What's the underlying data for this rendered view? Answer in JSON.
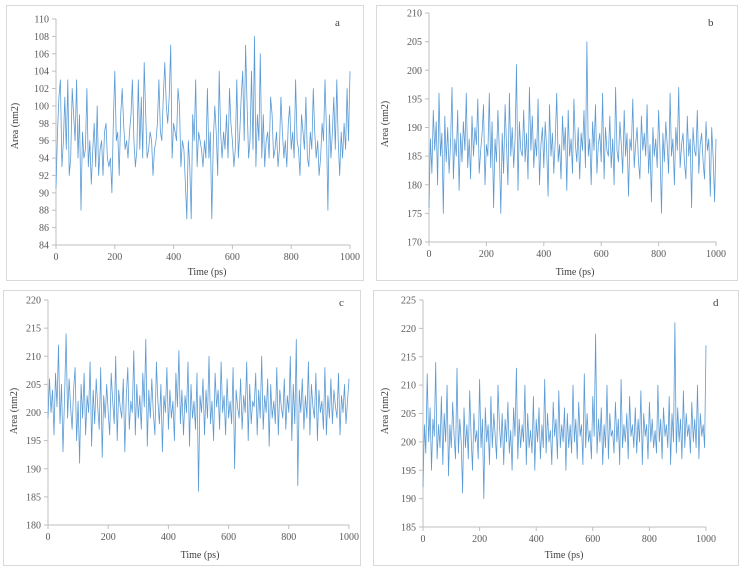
{
  "page": {
    "colors": {
      "line": "#5b9bd5",
      "axis": "#bfbfbf",
      "border": "#d9d9d9",
      "text": "#595959"
    }
  },
  "chart_data": [
    {
      "type": "line",
      "panel": "a",
      "xlabel": "Time (ps)",
      "ylabel": "Area (nm2)",
      "xlim": [
        0,
        1000
      ],
      "ylim": [
        84,
        110
      ],
      "x_ticks": [
        0,
        200,
        400,
        600,
        800,
        1000
      ],
      "y_ticks": [
        84,
        86,
        88,
        90,
        92,
        94,
        96,
        98,
        100,
        102,
        104,
        106,
        108,
        110
      ],
      "grid": false,
      "series": [
        {
          "x_start": 0,
          "x_step": 5,
          "values": [
            90.5,
            97,
            101,
            103,
            93,
            96,
            101,
            95,
            103,
            92,
            94,
            102,
            99,
            96,
            103,
            94,
            99,
            88,
            97,
            94,
            95,
            102,
            93,
            96,
            91,
            95,
            98,
            93,
            100,
            92,
            95,
            96,
            92,
            97,
            98,
            94,
            93,
            94,
            90,
            98,
            104,
            96,
            97,
            92,
            99,
            102,
            98,
            95,
            96,
            94,
            97,
            99,
            103,
            96,
            93,
            95,
            103,
            95,
            101,
            94,
            105,
            99,
            94,
            95,
            97,
            96,
            92,
            95,
            96,
            98,
            103,
            97,
            96,
            101,
            105,
            100,
            98,
            101,
            107,
            94,
            98,
            97,
            96,
            102,
            100,
            93,
            96,
            95,
            91,
            87,
            96,
            93,
            87,
            99,
            96,
            103,
            93,
            97,
            96,
            95,
            93,
            96,
            94,
            102,
            94,
            97,
            87,
            96,
            100,
            97,
            92,
            104,
            97,
            94,
            97,
            95,
            99,
            94,
            102,
            98,
            96,
            93,
            95,
            103,
            94,
            97,
            101,
            104,
            96,
            107,
            100,
            94,
            96,
            104,
            95,
            108,
            93,
            99,
            96,
            106,
            94,
            99,
            93,
            96,
            97,
            94,
            101,
            99,
            94,
            95,
            97,
            93,
            95,
            101,
            97,
            94,
            96,
            93,
            98,
            100,
            95,
            97,
            94,
            103,
            96,
            95,
            92,
            99,
            97,
            95,
            101,
            94,
            93,
            97,
            95,
            102,
            97,
            94,
            96,
            92,
            94,
            98,
            96,
            103,
            97,
            88,
            99,
            94,
            97,
            101,
            95,
            103,
            96,
            92,
            97,
            94,
            98,
            95,
            102,
            96,
            104
          ]
        }
      ]
    },
    {
      "type": "line",
      "panel": "b",
      "xlabel": "Time (ps)",
      "ylabel": "Area (nm2)",
      "xlim": [
        0,
        1000
      ],
      "ylim": [
        170,
        210
      ],
      "x_ticks": [
        0,
        200,
        400,
        600,
        800,
        1000
      ],
      "y_ticks": [
        170,
        175,
        180,
        185,
        190,
        195,
        200,
        205,
        210
      ],
      "grid": false,
      "series": [
        {
          "x_start": 0,
          "x_step": 5,
          "values": [
            176,
            188,
            182,
            193,
            186,
            191,
            180,
            196,
            185,
            189,
            175,
            192,
            184,
            190,
            182,
            187,
            197,
            181,
            188,
            185,
            193,
            179,
            189,
            184,
            191,
            186,
            196,
            183,
            188,
            181,
            192,
            185,
            190,
            187,
            195,
            182,
            186,
            189,
            194,
            180,
            187,
            185,
            196,
            183,
            191,
            176,
            188,
            184,
            193,
            186,
            175,
            189,
            182,
            194,
            187,
            180,
            196,
            185,
            190,
            183,
            188,
            201,
            179,
            191,
            186,
            185,
            193,
            184,
            189,
            181,
            197,
            186,
            192,
            183,
            188,
            185,
            195,
            180,
            187,
            190,
            183,
            191,
            186,
            178,
            194,
            185,
            189,
            182,
            188,
            196,
            184,
            187,
            181,
            192,
            186,
            190,
            179,
            193,
            185,
            188,
            182,
            195,
            187,
            184,
            190,
            181,
            189,
            186,
            193,
            183,
            205,
            185,
            188,
            180,
            191,
            186,
            194,
            182,
            187,
            189,
            184,
            196,
            181,
            190,
            186,
            185,
            192,
            183,
            188,
            180,
            197,
            186,
            184,
            191,
            187,
            182,
            193,
            185,
            189,
            178,
            188,
            186,
            195,
            183,
            187,
            190,
            184,
            181,
            192,
            186,
            189,
            185,
            194,
            182,
            187,
            177,
            190,
            185,
            188,
            183,
            193,
            186,
            175,
            189,
            184,
            191,
            187,
            182,
            196,
            185,
            188,
            180,
            190,
            186,
            197,
            183,
            187,
            189,
            184,
            181,
            192,
            185,
            188,
            176,
            190,
            186,
            185,
            193,
            182,
            187,
            189,
            184,
            181,
            191,
            186,
            188,
            178,
            190,
            185,
            177,
            188
          ]
        }
      ]
    },
    {
      "type": "line",
      "panel": "c",
      "xlabel": "Time (ps)",
      "ylabel": "Area (nm2)",
      "xlim": [
        0,
        1000
      ],
      "ylim": [
        180,
        220
      ],
      "x_ticks": [
        0,
        200,
        400,
        600,
        800,
        1000
      ],
      "y_ticks": [
        180,
        185,
        190,
        195,
        200,
        205,
        210,
        215,
        220
      ],
      "grid": false,
      "series": [
        {
          "x_start": 0,
          "x_step": 5,
          "values": [
            199,
            206,
            200,
            204,
            196,
            207,
            201,
            212,
            198,
            205,
            193,
            203,
            214,
            199,
            206,
            201,
            197,
            204,
            208,
            195,
            202,
            191,
            205,
            199,
            207,
            196,
            203,
            200,
            209,
            194,
            204,
            198,
            206,
            201,
            197,
            208,
            192,
            203,
            199,
            205,
            200,
            196,
            207,
            202,
            198,
            210,
            195,
            204,
            201,
            199,
            206,
            193,
            203,
            208,
            197,
            202,
            200,
            211,
            196,
            205,
            199,
            203,
            197,
            207,
            201,
            213,
            194,
            204,
            199,
            206,
            200,
            196,
            209,
            202,
            198,
            205,
            193,
            203,
            200,
            208,
            197,
            204,
            199,
            202,
            195,
            207,
            201,
            211,
            198,
            204,
            196,
            203,
            200,
            209,
            194,
            205,
            199,
            202,
            197,
            207,
            186,
            203,
            200,
            206,
            196,
            204,
            199,
            210,
            198,
            202,
            195,
            207,
            201,
            204,
            197,
            209,
            200,
            203,
            196,
            206,
            199,
            202,
            198,
            208,
            190,
            204,
            201,
            199,
            206,
            197,
            203,
            200,
            209,
            195,
            205,
            198,
            202,
            201,
            207,
            196,
            204,
            199,
            210,
            197,
            203,
            200,
            206,
            194,
            205,
            199,
            202,
            198,
            208,
            196,
            204,
            201,
            199,
            206,
            197,
            203,
            200,
            210,
            195,
            205,
            198,
            213,
            187,
            204,
            200,
            206,
            197,
            203,
            199,
            209,
            196,
            205,
            201,
            199,
            207,
            195,
            204,
            200,
            202,
            197,
            208,
            196,
            203,
            199,
            206,
            198,
            204,
            201,
            199,
            207,
            196,
            203,
            200,
            205,
            198,
            202,
            206
          ]
        }
      ]
    },
    {
      "type": "line",
      "panel": "d",
      "xlabel": "Time (ps)",
      "ylabel": "Area (nm2)",
      "xlim": [
        0,
        1000
      ],
      "ylim": [
        185,
        225
      ],
      "x_ticks": [
        0,
        200,
        400,
        600,
        800,
        1000
      ],
      "y_ticks": [
        185,
        190,
        195,
        200,
        205,
        210,
        215,
        220,
        225
      ],
      "grid": false,
      "series": [
        {
          "x_start": 0,
          "x_step": 5,
          "values": [
            192,
            203,
            198,
            212,
            200,
            206,
            195,
            204,
            201,
            214,
            197,
            203,
            199,
            208,
            196,
            205,
            200,
            210,
            194,
            203,
            199,
            207,
            201,
            197,
            213,
            198,
            204,
            200,
            191,
            206,
            199,
            203,
            197,
            209,
            201,
            195,
            205,
            200,
            202,
            197,
            211,
            199,
            204,
            190,
            206,
            200,
            203,
            196,
            208,
            199,
            205,
            201,
            197,
            210,
            203,
            199,
            205,
            196,
            204,
            200,
            207,
            198,
            202,
            195,
            206,
            201,
            213,
            197,
            204,
            199,
            203,
            200,
            210,
            196,
            205,
            199,
            202,
            198,
            208,
            195,
            204,
            200,
            206,
            197,
            203,
            199,
            211,
            198,
            205,
            200,
            202,
            196,
            207,
            201,
            204,
            197,
            209,
            199,
            203,
            200,
            206,
            195,
            205,
            199,
            203,
            198,
            210,
            200,
            204,
            197,
            207,
            201,
            203,
            196,
            212,
            199,
            205,
            200,
            202,
            197,
            208,
            201,
            219,
            198,
            204,
            200,
            206,
            196,
            203,
            199,
            210,
            197,
            205,
            201,
            202,
            198,
            207,
            200,
            204,
            196,
            211,
            199,
            203,
            200,
            205,
            197,
            208,
            201,
            203,
            199,
            206,
            198,
            204,
            200,
            209,
            196,
            205,
            201,
            203,
            197,
            207,
            200,
            204,
            199,
            202,
            198,
            210,
            200,
            204,
            197,
            206,
            201,
            203,
            199,
            208,
            196,
            205,
            200,
            221,
            198,
            206,
            200,
            204,
            197,
            209,
            199,
            205,
            201,
            203,
            198,
            207,
            200,
            204,
            199,
            210,
            197,
            205,
            201,
            203,
            199,
            217
          ]
        }
      ]
    }
  ]
}
